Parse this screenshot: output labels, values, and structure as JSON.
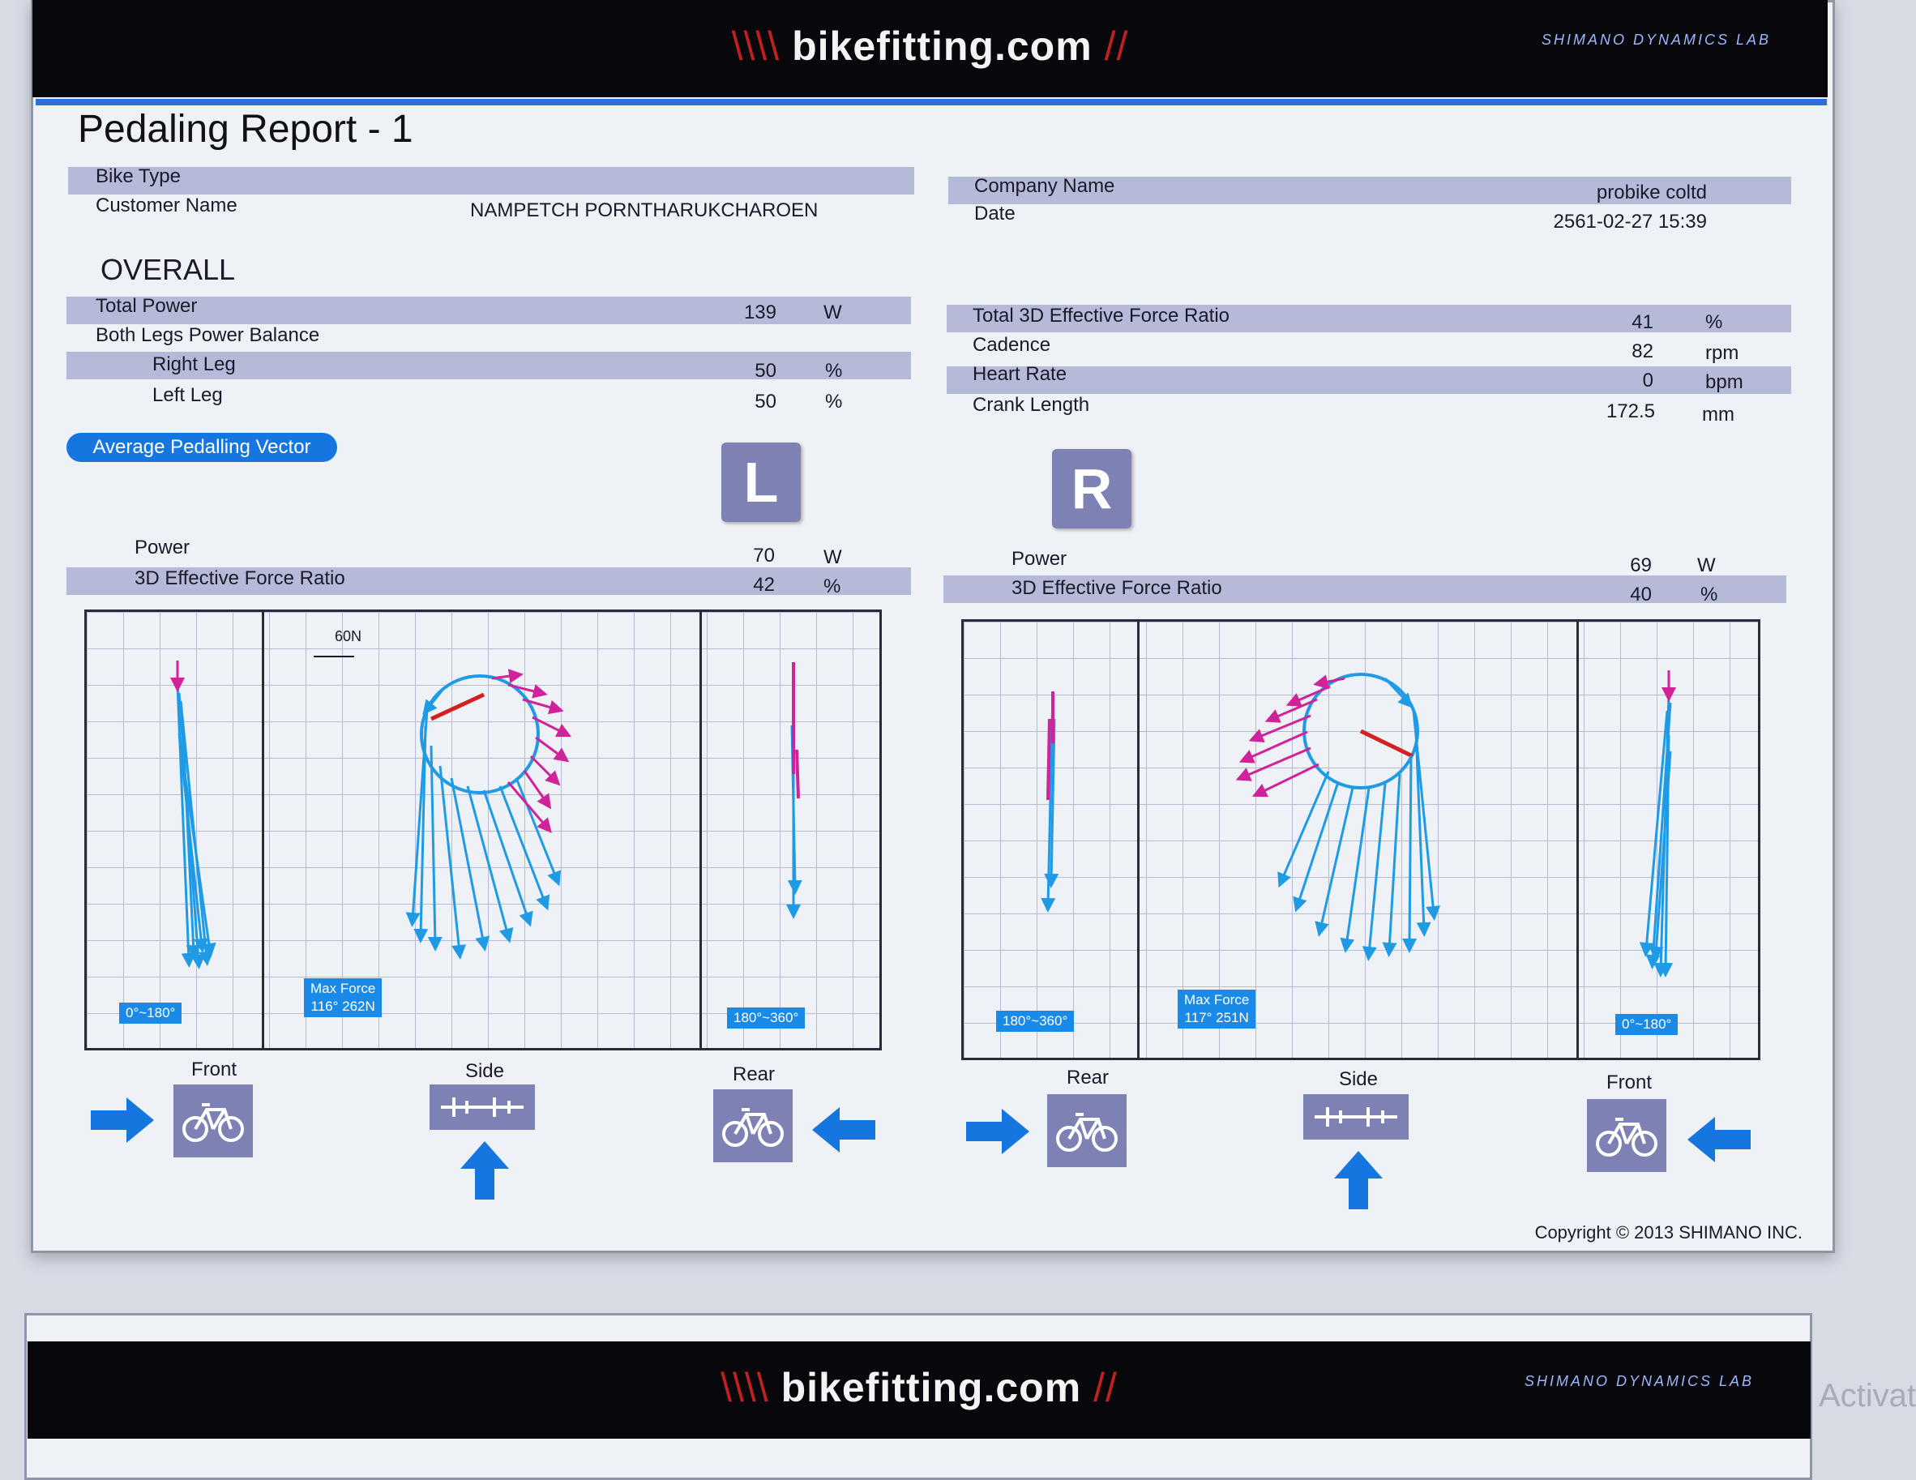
{
  "header": {
    "brand": "bikefitting.com",
    "logo_text": "SHIMANO DYNAMICS LAB"
  },
  "report": {
    "title": "Pedaling Report - 1"
  },
  "info_left": [
    {
      "label": "Bike Type",
      "value": ""
    },
    {
      "label": "Customer Name",
      "value": "NAMPETCH PORNTHARUKCHAROEN"
    }
  ],
  "info_right": [
    {
      "label": "Company Name",
      "value": "probike coltd"
    },
    {
      "label": "Date",
      "value": "2561-02-27 15:39"
    }
  ],
  "overall": {
    "heading": "OVERALL",
    "left_rows": [
      {
        "label": "Total Power",
        "value": "139",
        "unit": "W"
      },
      {
        "label": "Both Legs Power Balance",
        "value": "",
        "unit": ""
      },
      {
        "label": "Right Leg",
        "value": "50",
        "unit": "%"
      },
      {
        "label": "Left Leg",
        "value": "50",
        "unit": "%"
      }
    ],
    "right_rows": [
      {
        "label": "Total 3D Effective Force Ratio",
        "value": "41",
        "unit": "%"
      },
      {
        "label": "Cadence",
        "value": "82",
        "unit": "rpm"
      },
      {
        "label": "Heart Rate",
        "value": "0",
        "unit": "bpm"
      },
      {
        "label": "Crank Length",
        "value": "172.5",
        "unit": "mm"
      }
    ]
  },
  "vector_button": "Average Pedalling Vector",
  "left_leg": {
    "badge": "L",
    "power_label": "Power",
    "power_value": "70",
    "power_unit": "W",
    "efr_label": "3D Effective Force Ratio",
    "efr_value": "42",
    "efr_unit": "%",
    "scale_label": "60N",
    "front_range": "0°~180°",
    "max_force": "Max Force\n116° 262N",
    "rear_range": "180°~360°",
    "views": [
      "Front",
      "Side",
      "Rear"
    ]
  },
  "right_leg": {
    "badge": "R",
    "power_label": "Power",
    "power_value": "69",
    "power_unit": "W",
    "efr_label": "3D Effective Force Ratio",
    "efr_value": "40",
    "efr_unit": "%",
    "rear_range": "180°~360°",
    "max_force": "Max Force\n117° 251N",
    "front_range": "0°~180°",
    "views": [
      "Rear",
      "Side",
      "Front"
    ]
  },
  "footer": {
    "copyright": "Copyright © 2013 SHIMANO INC."
  },
  "desktop": {
    "watermark": "Activat"
  },
  "colors": {
    "accent_blue": "#1576e0",
    "vector_blue": "#1f9be6",
    "vector_magenta": "#d0239a",
    "crank_red": "#d42020",
    "badge": "#7d81b3",
    "band": "#aab0d4"
  }
}
